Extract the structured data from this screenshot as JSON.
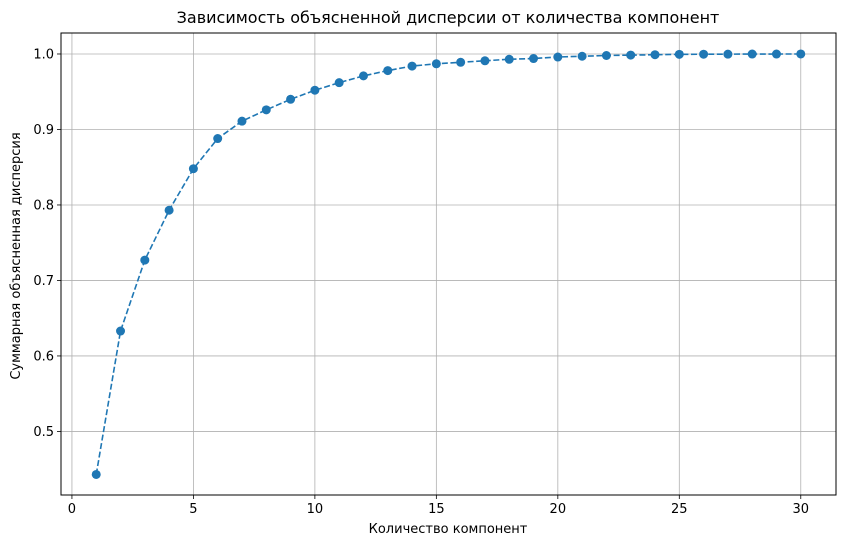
{
  "chart_data": {
    "type": "line",
    "title": "Зависимость объясненной дисперсии от количества компонент",
    "xlabel": "Количество компонент",
    "ylabel": "Суммарная объясненная дисперсия",
    "xlim": [
      -0.45,
      31.45
    ],
    "ylim": [
      0.4158,
      1.0278
    ],
    "grid": true,
    "line_style": "dashed",
    "marker": "circle",
    "color": "#1f77b4",
    "x_ticks": [
      {
        "value": 0,
        "label": "0"
      },
      {
        "value": 5,
        "label": "5"
      },
      {
        "value": 10,
        "label": "10"
      },
      {
        "value": 15,
        "label": "15"
      },
      {
        "value": 20,
        "label": "20"
      },
      {
        "value": 25,
        "label": "25"
      },
      {
        "value": 30,
        "label": "30"
      }
    ],
    "y_ticks": [
      {
        "value": 0.5,
        "label": "0.5"
      },
      {
        "value": 0.6,
        "label": "0.6"
      },
      {
        "value": 0.7,
        "label": "0.7"
      },
      {
        "value": 0.8,
        "label": "0.8"
      },
      {
        "value": 0.9,
        "label": "0.9"
      },
      {
        "value": 1.0,
        "label": "1.0"
      }
    ],
    "x": [
      1,
      2,
      3,
      4,
      5,
      6,
      7,
      8,
      9,
      10,
      11,
      12,
      13,
      14,
      15,
      16,
      17,
      18,
      19,
      20,
      21,
      22,
      23,
      24,
      25,
      26,
      27,
      28,
      29,
      30
    ],
    "y": [
      0.443,
      0.633,
      0.727,
      0.793,
      0.848,
      0.888,
      0.911,
      0.926,
      0.94,
      0.952,
      0.962,
      0.971,
      0.978,
      0.984,
      0.987,
      0.989,
      0.991,
      0.993,
      0.994,
      0.996,
      0.997,
      0.998,
      0.9985,
      0.999,
      0.9995,
      0.9997,
      0.9998,
      0.9999,
      0.99995,
      1.0
    ]
  }
}
